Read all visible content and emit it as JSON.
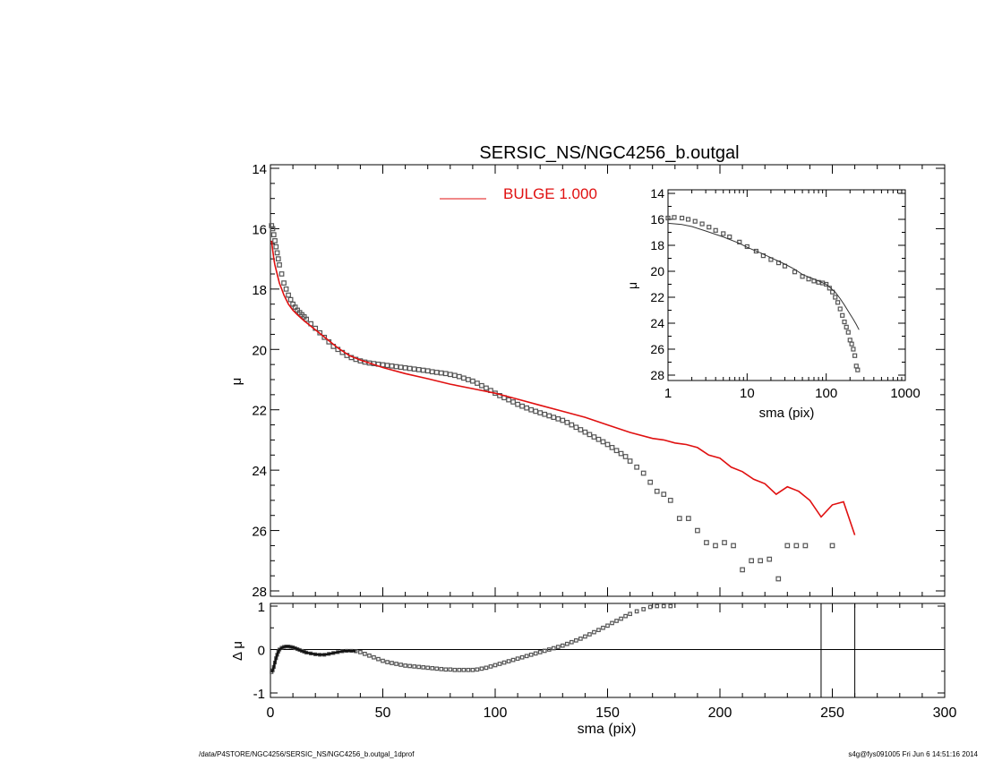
{
  "footer": {
    "left": "/data/P4STORE/NGC4256/SERSIC_NS/NGC4256_b.outgal_1dprof",
    "right": "s4g@fys091005  Fri Jun  6 14:51:16 2014"
  },
  "colors": {
    "model": "#e01010",
    "data": "#555555",
    "axes": "#000000"
  },
  "chart_data": [
    {
      "id": "main",
      "type": "scatter",
      "title": "SERSIC_NS/NGC4256_b.outgal",
      "xlabel": "",
      "ylabel": "μ",
      "xlim": [
        0,
        300
      ],
      "ylim": [
        28,
        14
      ],
      "y_inverted": true,
      "xticks": [],
      "yticks": [
        "14",
        "16",
        "18",
        "20",
        "22",
        "24",
        "26",
        "28"
      ],
      "legend": {
        "label": "BULGE  1.000",
        "placement": "top-center"
      },
      "series": [
        {
          "role": "data",
          "marker": "square",
          "x": [
            0.5,
            1,
            1.5,
            2,
            2.5,
            3,
            3.5,
            4,
            5,
            6,
            7,
            8,
            9,
            10,
            11,
            12,
            13,
            14,
            15,
            16,
            18,
            20,
            22,
            24,
            26,
            28,
            30,
            32,
            34,
            36,
            38,
            40,
            42,
            44,
            46,
            48,
            50,
            52,
            54,
            56,
            58,
            60,
            62,
            64,
            66,
            68,
            70,
            72,
            74,
            76,
            78,
            80,
            82,
            84,
            86,
            88,
            90,
            92,
            94,
            96,
            98,
            100,
            102,
            104,
            106,
            108,
            110,
            112,
            114,
            116,
            118,
            120,
            122,
            124,
            126,
            128,
            130,
            132,
            134,
            136,
            138,
            140,
            142,
            144,
            146,
            148,
            150,
            152,
            154,
            156,
            158,
            160,
            163,
            166,
            169,
            172,
            175,
            178,
            182,
            186,
            190,
            194,
            198,
            202,
            206,
            210,
            214,
            218,
            222,
            226,
            230,
            234,
            238,
            250
          ],
          "y": [
            15.9,
            16.0,
            16.2,
            16.4,
            16.6,
            16.8,
            17.0,
            17.2,
            17.5,
            17.8,
            18.0,
            18.2,
            18.35,
            18.5,
            18.6,
            18.7,
            18.78,
            18.85,
            18.92,
            19.0,
            19.15,
            19.3,
            19.45,
            19.6,
            19.75,
            19.9,
            20.0,
            20.1,
            20.2,
            20.27,
            20.33,
            20.38,
            20.42,
            20.45,
            20.47,
            20.49,
            20.51,
            20.53,
            20.55,
            20.57,
            20.59,
            20.61,
            20.63,
            20.65,
            20.67,
            20.69,
            20.71,
            20.74,
            20.76,
            20.78,
            20.8,
            20.83,
            20.86,
            20.9,
            20.95,
            21.0,
            21.05,
            21.12,
            21.2,
            21.28,
            21.36,
            21.45,
            21.53,
            21.6,
            21.67,
            21.74,
            21.82,
            21.88,
            21.94,
            22.0,
            22.05,
            22.1,
            22.15,
            22.2,
            22.25,
            22.3,
            22.35,
            22.42,
            22.5,
            22.58,
            22.66,
            22.74,
            22.82,
            22.9,
            22.98,
            23.06,
            23.15,
            23.25,
            23.35,
            23.45,
            23.55,
            23.7,
            23.9,
            24.1,
            24.4,
            24.7,
            24.8,
            25.0,
            25.6,
            25.6,
            26.0,
            26.4,
            26.5,
            26.4,
            26.5,
            27.3,
            27.0,
            27.0,
            26.95,
            27.6,
            26.5,
            26.5,
            26.5,
            26.5
          ],
          "note_x_max": 250
        },
        {
          "role": "model",
          "name": "BULGE  1.000",
          "x": [
            0.5,
            1,
            1.5,
            2,
            3,
            4,
            5,
            6,
            8,
            10,
            12,
            15,
            20,
            25,
            30,
            35,
            40,
            50,
            60,
            70,
            80,
            90,
            100,
            110,
            120,
            130,
            140,
            150,
            160,
            170,
            175,
            180,
            185,
            190,
            195,
            200,
            205,
            210,
            215,
            220,
            225,
            230,
            235,
            240,
            245,
            250,
            255,
            260
          ],
          "y": [
            16.4,
            16.7,
            17.0,
            17.2,
            17.5,
            17.8,
            18.0,
            18.2,
            18.5,
            18.7,
            18.85,
            19.05,
            19.35,
            19.65,
            19.95,
            20.2,
            20.35,
            20.6,
            20.8,
            20.97,
            21.15,
            21.3,
            21.45,
            21.65,
            21.85,
            22.05,
            22.25,
            22.5,
            22.75,
            22.95,
            23.0,
            23.1,
            23.15,
            23.25,
            23.5,
            23.6,
            23.9,
            24.05,
            24.3,
            24.45,
            24.8,
            24.55,
            24.7,
            25.0,
            25.55,
            25.15,
            25.05,
            26.15
          ]
        }
      ]
    },
    {
      "id": "inset",
      "type": "scatter",
      "title": "",
      "xlabel": "sma (pix)",
      "ylabel": "μ",
      "xscale": "log",
      "xlim": [
        1,
        1000
      ],
      "ylim": [
        28,
        14
      ],
      "y_inverted": true,
      "xticks": [
        "1",
        "10",
        "100",
        "1000"
      ],
      "yticks": [
        "14",
        "16",
        "18",
        "20",
        "22",
        "24",
        "26",
        "28"
      ],
      "series": [
        {
          "role": "data",
          "marker": "square",
          "x": [
            1,
            1.2,
            1.5,
            1.8,
            2.2,
            2.7,
            3.3,
            4,
            5,
            6,
            8,
            10,
            13,
            16,
            20,
            25,
            30,
            40,
            50,
            60,
            70,
            80,
            90,
            100,
            110,
            120,
            130,
            140,
            150,
            160,
            170,
            180,
            190,
            200,
            210,
            220,
            230,
            240,
            250
          ],
          "y": [
            15.9,
            15.85,
            15.9,
            16.0,
            16.15,
            16.35,
            16.6,
            16.85,
            17.1,
            17.35,
            17.75,
            18.1,
            18.45,
            18.8,
            19.1,
            19.35,
            19.6,
            20.05,
            20.4,
            20.6,
            20.75,
            20.85,
            20.9,
            21.0,
            21.3,
            21.6,
            22.0,
            22.4,
            22.9,
            23.4,
            23.9,
            24.3,
            24.7,
            25.3,
            25.6,
            26.0,
            26.5,
            27.3,
            27.6
          ]
        },
        {
          "role": "model",
          "x": [
            1,
            1.5,
            2,
            3,
            5,
            8,
            10,
            15,
            20,
            30,
            40,
            50,
            70,
            100,
            130,
            150,
            170,
            200,
            220,
            240,
            260
          ],
          "y": [
            16.3,
            16.4,
            16.55,
            16.9,
            17.35,
            17.85,
            18.15,
            18.6,
            18.95,
            19.45,
            19.85,
            20.25,
            20.6,
            21.0,
            21.6,
            22.1,
            22.6,
            23.3,
            23.7,
            24.1,
            24.5
          ]
        }
      ]
    },
    {
      "id": "residual",
      "type": "scatter",
      "title": "",
      "xlabel": "sma (pix)",
      "ylabel": "Δ μ",
      "xlim": [
        0,
        300
      ],
      "ylim": [
        -1.1,
        1.1
      ],
      "xticks": [
        "0",
        "50",
        "100",
        "150",
        "200",
        "250",
        "300"
      ],
      "yticks": [
        "1",
        "0",
        "-1"
      ],
      "zero_line": 0,
      "vertical_lines_x": [
        245,
        260
      ],
      "series": [
        {
          "role": "residual",
          "marker": "square",
          "x": [
            0.5,
            1,
            1.5,
            2,
            2.5,
            3,
            3.5,
            4,
            5,
            6,
            7,
            8,
            9,
            10,
            11,
            12,
            13,
            14,
            15,
            16,
            18,
            20,
            22,
            24,
            26,
            28,
            30,
            32,
            34,
            36,
            38,
            40,
            42,
            44,
            46,
            48,
            50,
            52,
            54,
            56,
            58,
            60,
            62,
            64,
            66,
            68,
            70,
            72,
            74,
            76,
            78,
            80,
            82,
            84,
            86,
            88,
            90,
            92,
            94,
            96,
            98,
            100,
            102,
            104,
            106,
            108,
            110,
            112,
            114,
            116,
            118,
            120,
            122,
            124,
            126,
            128,
            130,
            132,
            134,
            136,
            138,
            140,
            142,
            144,
            146,
            148,
            150,
            152,
            154,
            156,
            158,
            160,
            163,
            166,
            169,
            172,
            175,
            178
          ],
          "y": [
            -0.52,
            -0.48,
            -0.4,
            -0.3,
            -0.2,
            -0.12,
            -0.05,
            0.0,
            0.04,
            0.06,
            0.07,
            0.07,
            0.06,
            0.05,
            0.03,
            0.01,
            -0.01,
            -0.03,
            -0.05,
            -0.07,
            -0.09,
            -0.11,
            -0.12,
            -0.12,
            -0.1,
            -0.08,
            -0.06,
            -0.04,
            -0.03,
            -0.03,
            -0.04,
            -0.06,
            -0.1,
            -0.14,
            -0.18,
            -0.22,
            -0.26,
            -0.29,
            -0.31,
            -0.33,
            -0.35,
            -0.37,
            -0.38,
            -0.39,
            -0.4,
            -0.41,
            -0.42,
            -0.43,
            -0.44,
            -0.45,
            -0.46,
            -0.46,
            -0.47,
            -0.47,
            -0.47,
            -0.47,
            -0.47,
            -0.46,
            -0.44,
            -0.42,
            -0.39,
            -0.36,
            -0.33,
            -0.3,
            -0.27,
            -0.24,
            -0.21,
            -0.18,
            -0.15,
            -0.12,
            -0.09,
            -0.06,
            -0.03,
            0.0,
            0.03,
            0.06,
            0.09,
            0.13,
            0.17,
            0.21,
            0.25,
            0.3,
            0.35,
            0.4,
            0.45,
            0.5,
            0.55,
            0.61,
            0.66,
            0.71,
            0.77,
            0.82,
            0.88,
            0.93,
            0.98,
            1.0,
            1.0,
            1.0
          ]
        }
      ]
    }
  ]
}
